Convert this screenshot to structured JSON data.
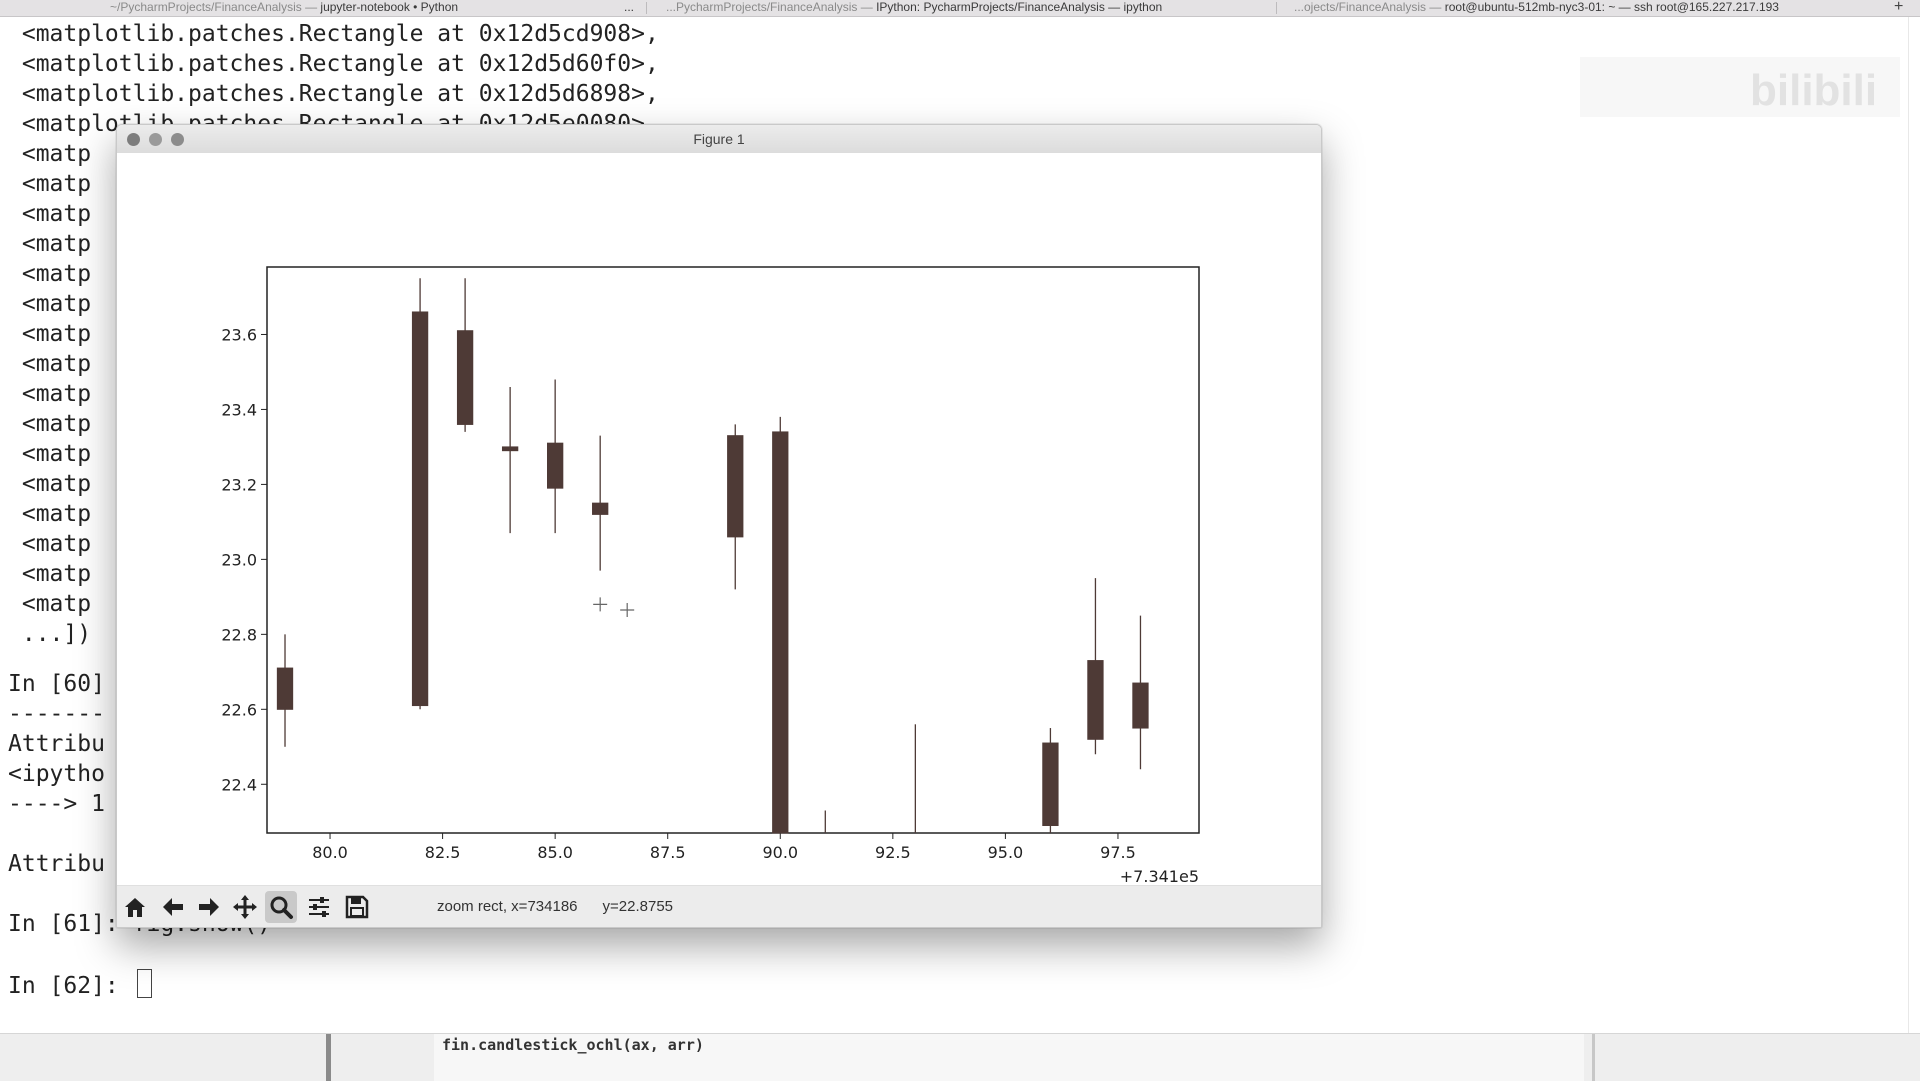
{
  "tabs": [
    {
      "dim": "~/PycharmProjects/FinanceAnalysis — ",
      "label": "jupyter-notebook • Python"
    },
    {
      "dim": "...PycharmProjects/FinanceAnalysis — ",
      "label": "IPython: PycharmProjects/FinanceAnalysis — ipython"
    },
    {
      "dim": "...ojects/FinanceAnalysis — ",
      "label": "root@ubuntu-512mb-nyc3-01: ~ — ssh root@165.227.217.193"
    }
  ],
  "tab_more": "...",
  "tab_add": "+",
  "terminal": {
    "top_lines": [
      " <matplotlib.patches.Rectangle at 0x12d5cd908>,",
      " <matplotlib.patches.Rectangle at 0x12d5d60f0>,",
      " <matplotlib.patches.Rectangle at 0x12d5d6898>,",
      " <matplotlib.patches.Rectangle at 0x12d5e0080>,"
    ],
    "truncated_line": " <matp",
    "truncated_count": 16,
    "ellipsis_line": " ...])",
    "in60": "In [60]",
    "dash_line": "-------",
    "attr1": "Attribu",
    "ipython": "<ipytho",
    "arrow": "----> 1",
    "attr2": "Attribu",
    "in61": "In [61]: fig.show()",
    "in62": "In [62]: "
  },
  "bottom_code": "fin.candlestick_ochl(ax, arr)",
  "figure": {
    "title": "Figure 1",
    "status_text": "zoom rect, x=734186",
    "status_y": "y=22.8755",
    "toolbar": [
      {
        "name": "home-icon",
        "label": "Home"
      },
      {
        "name": "back-icon",
        "label": "Back"
      },
      {
        "name": "forward-icon",
        "label": "Forward"
      },
      {
        "name": "pan-icon",
        "label": "Pan"
      },
      {
        "name": "zoom-icon",
        "label": "Zoom",
        "active": true
      },
      {
        "name": "subplots-icon",
        "label": "Configure subplots"
      },
      {
        "name": "save-icon",
        "label": "Save"
      }
    ]
  },
  "chart_data": {
    "type": "candlestick",
    "title": "",
    "xlabel": "",
    "ylabel": "",
    "x_offset_label": "+7.341e5",
    "xlim": [
      78.6,
      99.3
    ],
    "ylim": [
      22.27,
      23.78
    ],
    "x_ticks": [
      80.0,
      82.5,
      85.0,
      87.5,
      90.0,
      92.5,
      95.0,
      97.5
    ],
    "x_tick_labels": [
      "80.0",
      "82.5",
      "85.0",
      "87.5",
      "90.0",
      "92.5",
      "95.0",
      "97.5"
    ],
    "y_ticks": [
      22.4,
      22.6,
      22.8,
      23.0,
      23.2,
      23.4,
      23.6
    ],
    "y_tick_labels": [
      "22.4",
      "22.6",
      "22.8",
      "23.0",
      "23.2",
      "23.4",
      "23.6"
    ],
    "candle_color": "#4e3a36",
    "candles": [
      {
        "x": 79.0,
        "open": 22.6,
        "close": 22.71,
        "high": 22.8,
        "low": 22.5
      },
      {
        "x": 82.0,
        "open": 22.61,
        "close": 23.66,
        "high": 23.75,
        "low": 22.6
      },
      {
        "x": 83.0,
        "open": 23.36,
        "close": 23.61,
        "high": 23.75,
        "low": 23.34
      },
      {
        "x": 84.0,
        "open": 23.29,
        "close": 23.3,
        "high": 23.46,
        "low": 23.07
      },
      {
        "x": 85.0,
        "open": 23.19,
        "close": 23.31,
        "high": 23.48,
        "low": 23.07
      },
      {
        "x": 86.0,
        "open": 23.12,
        "close": 23.15,
        "high": 23.33,
        "low": 22.97
      },
      {
        "x": 89.0,
        "open": 23.06,
        "close": 23.33,
        "high": 23.36,
        "low": 22.92
      },
      {
        "x": 90.0,
        "open": 22.27,
        "close": 23.34,
        "high": 23.38,
        "low": 22.27
      },
      {
        "x": 91.0,
        "open": 22.27,
        "close": 22.27,
        "high": 22.33,
        "low": 22.27
      },
      {
        "x": 93.0,
        "open": 22.27,
        "close": 22.27,
        "high": 22.56,
        "low": 22.27
      },
      {
        "x": 96.0,
        "open": 22.29,
        "close": 22.51,
        "high": 22.55,
        "low": 22.27
      },
      {
        "x": 97.0,
        "open": 22.52,
        "close": 22.73,
        "high": 22.95,
        "low": 22.48
      },
      {
        "x": 98.0,
        "open": 22.55,
        "close": 22.67,
        "high": 22.85,
        "low": 22.44
      }
    ]
  }
}
